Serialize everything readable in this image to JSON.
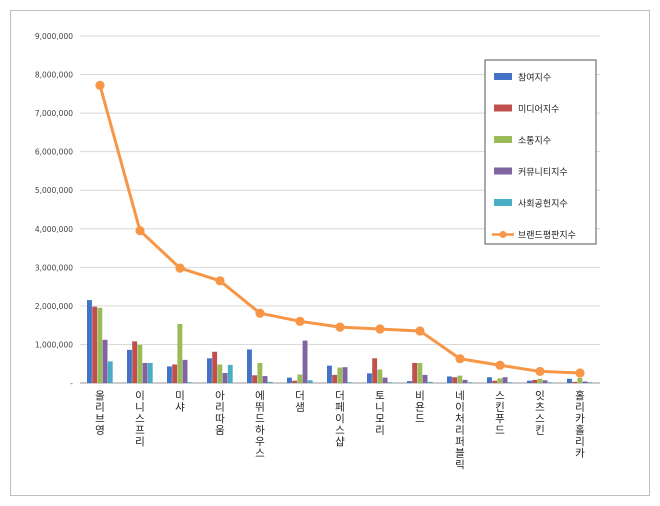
{
  "chart_data": {
    "type": "bar",
    "categories": [
      "올리브영",
      "이니스프리",
      "미샤",
      "아리따움",
      "에뛰드하우스",
      "더샘",
      "더페이스샵",
      "토니모리",
      "비욘드",
      "네이처리퍼블릭",
      "스킨푸드",
      "잇츠스킨",
      "홀리카홀리카"
    ],
    "ylim": [
      0,
      9000000
    ],
    "yticks": [
      0,
      1000000,
      2000000,
      3000000,
      4000000,
      5000000,
      6000000,
      7000000,
      8000000,
      9000000
    ],
    "ytick_labels": [
      "-",
      "1,000,000",
      "2,000,000",
      "3,000,000",
      "4,000,000",
      "5,000,000",
      "6,000,000",
      "7,000,000",
      "8,000,000",
      "9,000,000"
    ],
    "legend_position": "right",
    "series": [
      {
        "name": "참여지수",
        "type": "bar",
        "color": "#4472c4",
        "values": [
          2150000,
          860000,
          430000,
          640000,
          870000,
          140000,
          450000,
          250000,
          50000,
          170000,
          150000,
          60000,
          110000
        ]
      },
      {
        "name": "미디어지수",
        "type": "bar",
        "color": "#c0504d",
        "values": [
          1980000,
          1080000,
          480000,
          810000,
          200000,
          60000,
          210000,
          640000,
          520000,
          150000,
          60000,
          80000,
          30000
        ]
      },
      {
        "name": "소통지수",
        "type": "bar",
        "color": "#9bbb59",
        "values": [
          1950000,
          990000,
          1530000,
          480000,
          520000,
          220000,
          400000,
          350000,
          520000,
          190000,
          120000,
          110000,
          130000
        ]
      },
      {
        "name": "커뮤니티지수",
        "type": "bar",
        "color": "#8064a2",
        "values": [
          1120000,
          520000,
          600000,
          260000,
          180000,
          1100000,
          410000,
          140000,
          210000,
          80000,
          150000,
          70000,
          40000
        ]
      },
      {
        "name": "사회공헌지수",
        "type": "bar",
        "color": "#4bacc6",
        "values": [
          560000,
          520000,
          20000,
          470000,
          30000,
          70000,
          20000,
          20000,
          30000,
          20000,
          20000,
          20000,
          20000
        ]
      },
      {
        "name": "브랜드평판지수",
        "type": "line",
        "color": "#f79646",
        "values": [
          7720000,
          3950000,
          2980000,
          2650000,
          1810000,
          1600000,
          1450000,
          1400000,
          1350000,
          630000,
          460000,
          300000,
          260000
        ]
      }
    ]
  }
}
